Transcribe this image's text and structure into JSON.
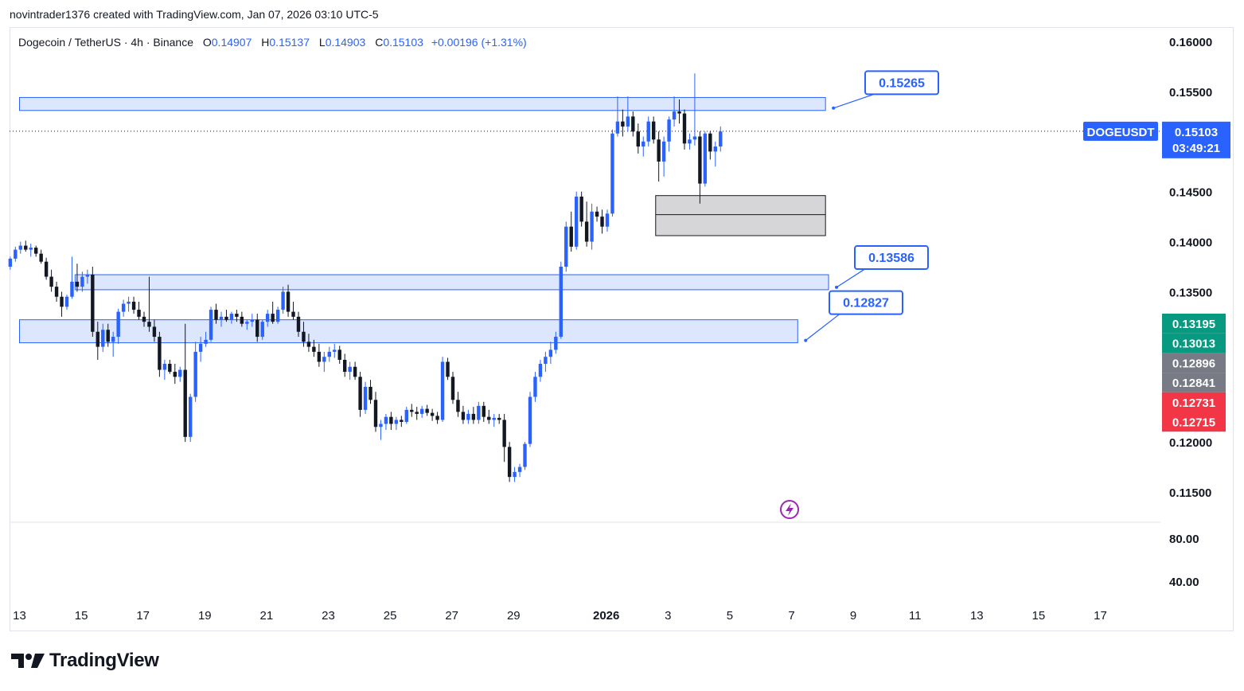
{
  "header": {
    "credit": "novintrader1376 created with TradingView.com, Jan 07, 2026 03:10 UTC-5"
  },
  "legend": {
    "symbol": "Dogecoin / TetherUS · 4h · Binance",
    "open_label": "O",
    "open": "0.14907",
    "high_label": "H",
    "high": "0.15137",
    "low_label": "L",
    "low": "0.14903",
    "close_label": "C",
    "close": "0.15103",
    "change": "+0.00196 (+1.31%)"
  },
  "branding": {
    "logo_text": "TradingView"
  },
  "colors": {
    "bull": "#2962ff",
    "bear": "#131722",
    "zone_fill": "#d6e2fd",
    "zone_border": "#2962ff",
    "gray_zone": "#d4d4d6",
    "accent": "#2962ff",
    "green_tag": "#089981",
    "gray_tag": "#787b86",
    "red_tag": "#f23645",
    "purple": "#9c27b0"
  },
  "chart_data": {
    "type": "candlestick",
    "symbol": "DOGEUSDT",
    "timeframe": "4h",
    "ylim": [
      0.113,
      0.1623
    ],
    "y_ticks": [
      "0.16000",
      "0.15500",
      "0.14500",
      "0.14000",
      "0.13500",
      "0.12000",
      "0.11500"
    ],
    "y_tick_values": [
      0.16,
      0.155,
      0.145,
      0.14,
      0.135,
      0.12,
      0.115
    ],
    "x_ticks": [
      "13",
      "15",
      "17",
      "19",
      "21",
      "23",
      "25",
      "27",
      "29",
      "2026",
      "3",
      "5",
      "7",
      "9",
      "11",
      "13",
      "15",
      "17",
      "19"
    ],
    "x_tick_day_index": [
      0,
      2,
      4,
      6,
      8,
      10,
      12,
      14,
      16,
      19,
      21,
      23,
      25,
      27,
      29,
      31,
      33,
      35,
      37
    ],
    "last_price": {
      "symbol_label": "DOGEUSDT",
      "price": "0.15103",
      "countdown": "03:49:21",
      "value": 0.15103
    },
    "price_tags": [
      {
        "label": "0.13195",
        "value": 0.13195,
        "color": "green"
      },
      {
        "label": "0.13013",
        "value": 0.13013,
        "color": "green"
      },
      {
        "label": "0.12896",
        "value": 0.12896,
        "color": "gray"
      },
      {
        "label": "0.12841",
        "value": 0.12841,
        "color": "gray"
      },
      {
        "label": "0.12731",
        "value": 0.12731,
        "color": "red"
      },
      {
        "label": "0.12715",
        "value": 0.12715,
        "color": "red"
      }
    ],
    "zones": [
      {
        "top": 0.1544,
        "bottom": 0.1531,
        "start_day": 0,
        "end_day": 26.1,
        "callout": "0.15265"
      },
      {
        "top": 0.1367,
        "bottom": 0.1352,
        "start_day": 1.8,
        "end_day": 26.2,
        "callout": "0.13586"
      },
      {
        "top": 0.1322,
        "bottom": 0.1299,
        "start_day": 0,
        "end_day": 25.2,
        "callout": "0.12827"
      }
    ],
    "gray_zone": {
      "top": 0.1446,
      "bottom": 0.1406,
      "mid": 0.1427,
      "start_day": 20.6,
      "end_day": 26.1
    },
    "lower_pane": {
      "ticks": [
        "80.00",
        "40.00"
      ]
    },
    "candles": [
      [
        0.1375,
        0.1385,
        0.1372,
        0.1383
      ],
      [
        0.1383,
        0.1395,
        0.138,
        0.1392
      ],
      [
        0.1392,
        0.14,
        0.1388,
        0.1396
      ],
      [
        0.1396,
        0.1401,
        0.139,
        0.1392
      ],
      [
        0.1392,
        0.1398,
        0.1385,
        0.1394
      ],
      [
        0.1394,
        0.1396,
        0.1385,
        0.1388
      ],
      [
        0.1388,
        0.1392,
        0.1378,
        0.138
      ],
      [
        0.138,
        0.1384,
        0.1362,
        0.1365
      ],
      [
        0.1365,
        0.1372,
        0.135,
        0.1355
      ],
      [
        0.1355,
        0.136,
        0.134,
        0.1345
      ],
      [
        0.1345,
        0.135,
        0.1325,
        0.1335
      ],
      [
        0.1335,
        0.1347,
        0.1332,
        0.1345
      ],
      [
        0.1345,
        0.1385,
        0.1343,
        0.136
      ],
      [
        0.136,
        0.1378,
        0.135,
        0.1355
      ],
      [
        0.1355,
        0.137,
        0.135,
        0.1365
      ],
      [
        0.1365,
        0.1372,
        0.1358,
        0.1367
      ],
      [
        0.1367,
        0.1375,
        0.1305,
        0.131
      ],
      [
        0.131,
        0.132,
        0.1282,
        0.1295
      ],
      [
        0.1295,
        0.1318,
        0.129,
        0.1312
      ],
      [
        0.1312,
        0.1318,
        0.1295,
        0.13
      ],
      [
        0.13,
        0.131,
        0.1285,
        0.1305
      ],
      [
        0.1305,
        0.1333,
        0.1298,
        0.133
      ],
      [
        0.133,
        0.1342,
        0.1325,
        0.1338
      ],
      [
        0.1338,
        0.1345,
        0.133,
        0.134
      ],
      [
        0.134,
        0.1345,
        0.1328,
        0.1332
      ],
      [
        0.1332,
        0.134,
        0.1322,
        0.1325
      ],
      [
        0.1325,
        0.133,
        0.1315,
        0.132
      ],
      [
        0.132,
        0.1365,
        0.131,
        0.1315
      ],
      [
        0.1315,
        0.1322,
        0.13,
        0.1305
      ],
      [
        0.1305,
        0.131,
        0.1265,
        0.1272
      ],
      [
        0.1272,
        0.1282,
        0.1262,
        0.1278
      ],
      [
        0.1278,
        0.1282,
        0.1268,
        0.127
      ],
      [
        0.127,
        0.1278,
        0.1258,
        0.1265
      ],
      [
        0.1265,
        0.1275,
        0.126,
        0.1272
      ],
      [
        0.1272,
        0.1318,
        0.12,
        0.1205
      ],
      [
        0.1205,
        0.1248,
        0.12,
        0.1245
      ],
      [
        0.1245,
        0.13,
        0.124,
        0.129
      ],
      [
        0.129,
        0.1305,
        0.128,
        0.1298
      ],
      [
        0.1298,
        0.131,
        0.1295,
        0.1302
      ],
      [
        0.1302,
        0.1335,
        0.13,
        0.1332
      ],
      [
        0.1332,
        0.1338,
        0.1318,
        0.1322
      ],
      [
        0.1322,
        0.133,
        0.1315,
        0.1325
      ],
      [
        0.1325,
        0.1332,
        0.132,
        0.1322
      ],
      [
        0.1322,
        0.133,
        0.1318,
        0.1328
      ],
      [
        0.1328,
        0.1332,
        0.132,
        0.1325
      ],
      [
        0.1325,
        0.133,
        0.1315,
        0.1318
      ],
      [
        0.1318,
        0.1322,
        0.1312,
        0.132
      ],
      [
        0.132,
        0.1328,
        0.1315,
        0.1322
      ],
      [
        0.1322,
        0.1328,
        0.13,
        0.1305
      ],
      [
        0.1305,
        0.1322,
        0.1302,
        0.132
      ],
      [
        0.132,
        0.1332,
        0.1315,
        0.1328
      ],
      [
        0.1328,
        0.134,
        0.1318,
        0.132
      ],
      [
        0.132,
        0.1335,
        0.1318,
        0.1332
      ],
      [
        0.1332,
        0.1355,
        0.1328,
        0.135
      ],
      [
        0.135,
        0.1357,
        0.1325,
        0.133
      ],
      [
        0.133,
        0.134,
        0.1322,
        0.1325
      ],
      [
        0.1325,
        0.133,
        0.1305,
        0.131
      ],
      [
        0.131,
        0.132,
        0.1295,
        0.13
      ],
      [
        0.13,
        0.1308,
        0.129,
        0.1295
      ],
      [
        0.1295,
        0.1302,
        0.1285,
        0.129
      ],
      [
        0.129,
        0.1298,
        0.1275,
        0.128
      ],
      [
        0.128,
        0.129,
        0.127,
        0.1285
      ],
      [
        0.1285,
        0.1295,
        0.128,
        0.129
      ],
      [
        0.129,
        0.1298,
        0.1284,
        0.1292
      ],
      [
        0.1292,
        0.1296,
        0.1278,
        0.1282
      ],
      [
        0.1282,
        0.1288,
        0.1265,
        0.127
      ],
      [
        0.127,
        0.128,
        0.1262,
        0.1275
      ],
      [
        0.1275,
        0.128,
        0.1262,
        0.1265
      ],
      [
        0.1265,
        0.127,
        0.1225,
        0.1232
      ],
      [
        0.1232,
        0.126,
        0.1228,
        0.1255
      ],
      [
        0.1255,
        0.1262,
        0.1238,
        0.1242
      ],
      [
        0.1242,
        0.125,
        0.121,
        0.1215
      ],
      [
        0.1215,
        0.1222,
        0.1202,
        0.1218
      ],
      [
        0.1218,
        0.1228,
        0.1212,
        0.1225
      ],
      [
        0.1225,
        0.123,
        0.1212,
        0.1218
      ],
      [
        0.1218,
        0.1225,
        0.1212,
        0.1222
      ],
      [
        0.1222,
        0.1226,
        0.1215,
        0.122
      ],
      [
        0.122,
        0.1235,
        0.1218,
        0.1232
      ],
      [
        0.1232,
        0.1238,
        0.1225,
        0.123
      ],
      [
        0.123,
        0.1235,
        0.1222,
        0.1228
      ],
      [
        0.1228,
        0.1236,
        0.1224,
        0.1233
      ],
      [
        0.1233,
        0.1237,
        0.1226,
        0.1229
      ],
      [
        0.1229,
        0.1233,
        0.1221,
        0.1226
      ],
      [
        0.1226,
        0.123,
        0.1218,
        0.1222
      ],
      [
        0.1222,
        0.1285,
        0.122,
        0.128
      ],
      [
        0.128,
        0.1284,
        0.1262,
        0.1265
      ],
      [
        0.1265,
        0.127,
        0.1238,
        0.1242
      ],
      [
        0.1242,
        0.125,
        0.1225,
        0.123
      ],
      [
        0.123,
        0.1236,
        0.1218,
        0.1222
      ],
      [
        0.1222,
        0.1232,
        0.1218,
        0.1228
      ],
      [
        0.1228,
        0.1235,
        0.1218,
        0.1222
      ],
      [
        0.1222,
        0.124,
        0.1218,
        0.1236
      ],
      [
        0.1236,
        0.124,
        0.122,
        0.1225
      ],
      [
        0.1225,
        0.1232,
        0.1218,
        0.1222
      ],
      [
        0.1222,
        0.1228,
        0.1215,
        0.1224
      ],
      [
        0.1224,
        0.1228,
        0.1218,
        0.1222
      ],
      [
        0.1222,
        0.1228,
        0.118,
        0.1195
      ],
      [
        0.1195,
        0.12,
        0.116,
        0.1165
      ],
      [
        0.1165,
        0.1175,
        0.116,
        0.117
      ],
      [
        0.117,
        0.1178,
        0.1165,
        0.1175
      ],
      [
        0.1175,
        0.12,
        0.1172,
        0.1198
      ],
      [
        0.1198,
        0.125,
        0.1195,
        0.1245
      ],
      [
        0.1245,
        0.127,
        0.124,
        0.1265
      ],
      [
        0.1265,
        0.1282,
        0.126,
        0.1278
      ],
      [
        0.1278,
        0.129,
        0.127,
        0.1285
      ],
      [
        0.1285,
        0.13,
        0.1278,
        0.1292
      ],
      [
        0.1292,
        0.131,
        0.1288,
        0.1305
      ],
      [
        0.1305,
        0.138,
        0.1303,
        0.1375
      ],
      [
        0.1375,
        0.142,
        0.137,
        0.1415
      ],
      [
        0.1415,
        0.143,
        0.139,
        0.1395
      ],
      [
        0.1395,
        0.145,
        0.1392,
        0.1445
      ],
      [
        0.1445,
        0.145,
        0.1415,
        0.142
      ],
      [
        0.142,
        0.144,
        0.1395,
        0.14
      ],
      [
        0.14,
        0.1438,
        0.1392,
        0.143
      ],
      [
        0.143,
        0.1435,
        0.142,
        0.1425
      ],
      [
        0.1425,
        0.1432,
        0.1408,
        0.1415
      ],
      [
        0.1415,
        0.1432,
        0.141,
        0.1428
      ],
      [
        0.1428,
        0.1512,
        0.1425,
        0.1508
      ],
      [
        0.1508,
        0.1545,
        0.1505,
        0.152
      ],
      [
        0.152,
        0.1532,
        0.1505,
        0.1515
      ],
      [
        0.1515,
        0.1545,
        0.151,
        0.1525
      ],
      [
        0.1525,
        0.153,
        0.1505,
        0.151
      ],
      [
        0.151,
        0.1518,
        0.1488,
        0.1495
      ],
      [
        0.1495,
        0.1505,
        0.1485,
        0.15
      ],
      [
        0.15,
        0.1525,
        0.1495,
        0.152
      ],
      [
        0.152,
        0.1525,
        0.1498,
        0.1502
      ],
      [
        0.1502,
        0.151,
        0.146,
        0.148
      ],
      [
        0.148,
        0.1505,
        0.1465,
        0.15
      ],
      [
        0.15,
        0.1525,
        0.149,
        0.1522
      ],
      [
        0.1522,
        0.1545,
        0.1515,
        0.153
      ],
      [
        0.153,
        0.1542,
        0.1518,
        0.1528
      ],
      [
        0.1528,
        0.1532,
        0.1492,
        0.1498
      ],
      [
        0.1498,
        0.1508,
        0.1492,
        0.1502
      ],
      [
        0.1502,
        0.1568,
        0.1496,
        0.1505
      ],
      [
        0.1505,
        0.151,
        0.1438,
        0.1458
      ],
      [
        0.1458,
        0.151,
        0.1455,
        0.1508
      ],
      [
        0.1508,
        0.151,
        0.1482,
        0.149
      ],
      [
        0.149,
        0.15,
        0.1475,
        0.1495
      ],
      [
        0.1495,
        0.1515,
        0.149,
        0.151
      ]
    ]
  }
}
